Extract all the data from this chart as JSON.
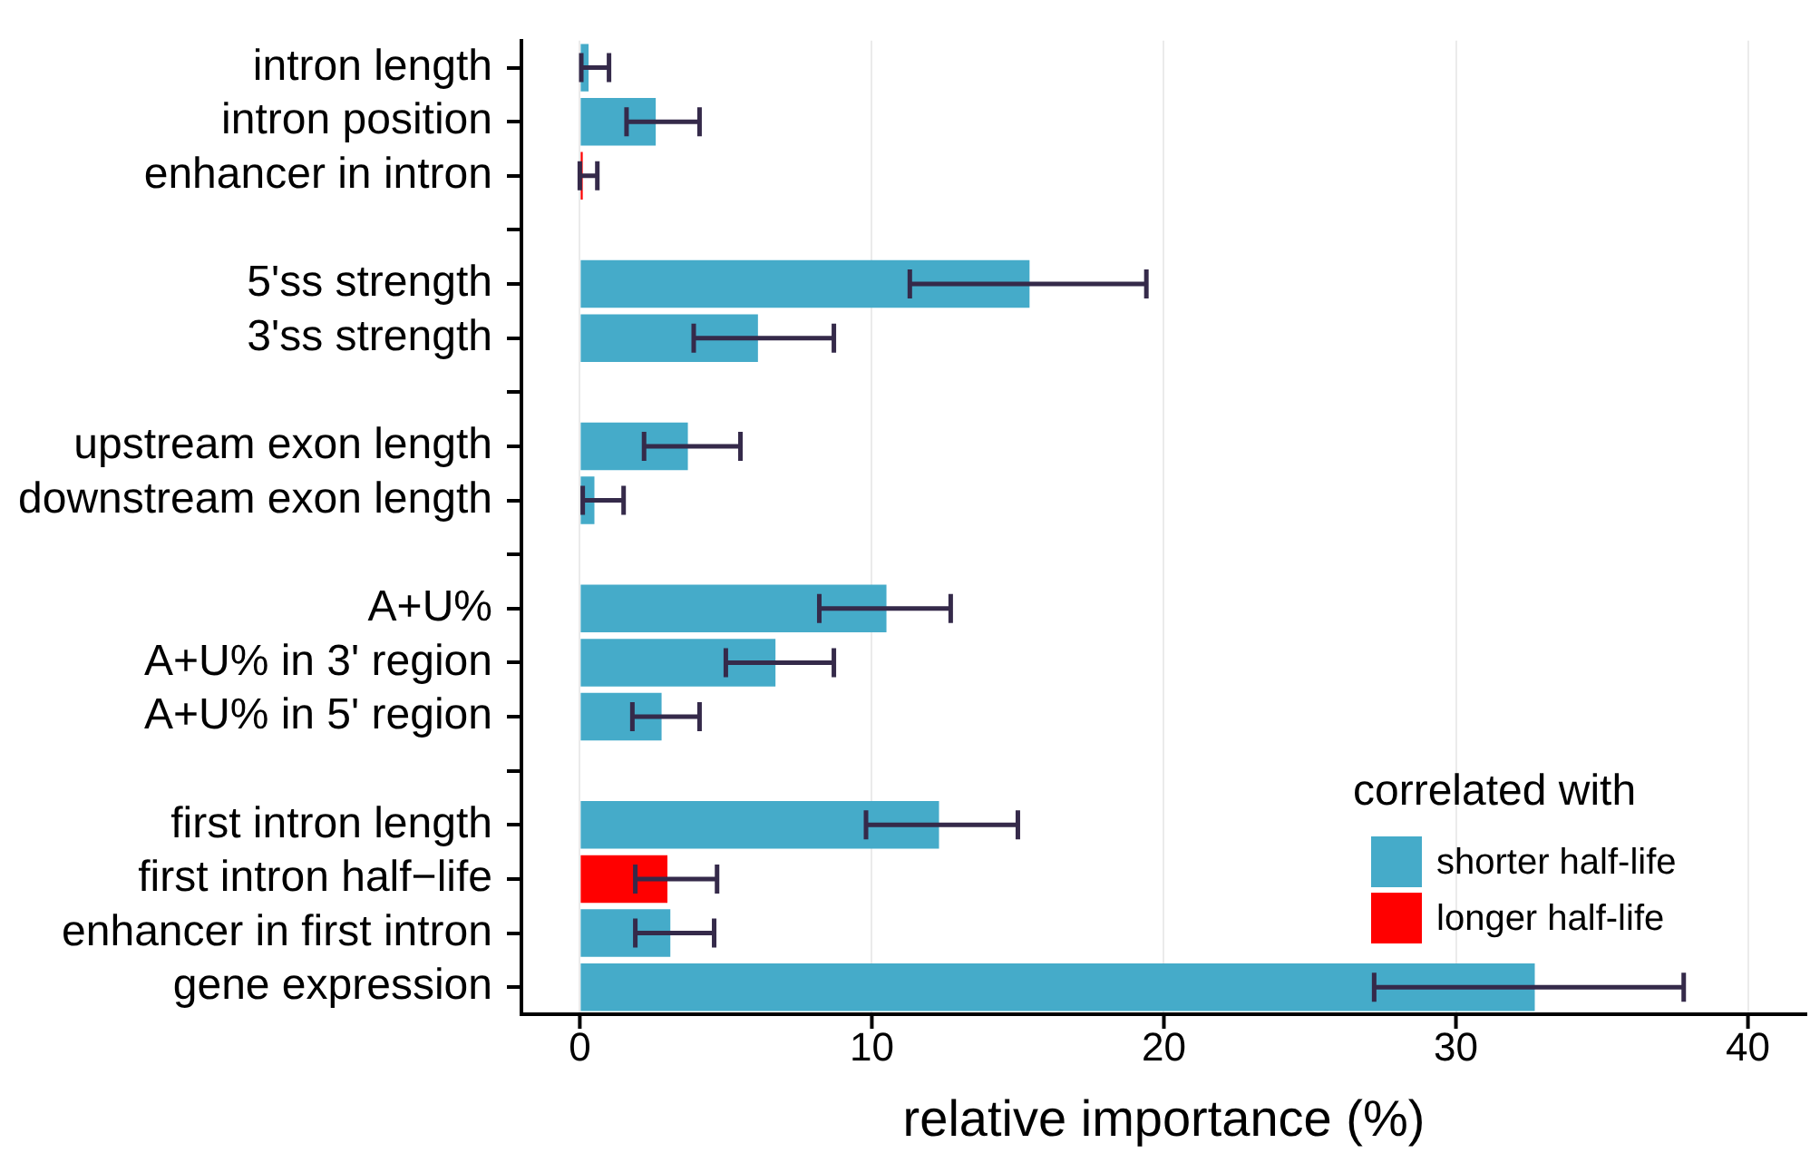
{
  "chart_data": {
    "type": "bar",
    "orientation": "horizontal",
    "xlabel": "relative importance (%)",
    "legend_title": "correlated with",
    "legend": "bottom right",
    "grid": "x",
    "categories": [
      "intron length",
      "intron position",
      "enhancer in intron",
      null,
      "5'ss strength",
      "3'ss strength",
      null,
      "upstream exon length",
      "downstream exon length",
      null,
      "A+U%",
      "A+U% in 3' region",
      "A+U% in 5' region",
      null,
      "first intron length",
      "first intron half−life",
      "enhancer in first intron",
      "gene expression"
    ],
    "xlim": [
      -2,
      42
    ],
    "xticks": [
      0,
      10,
      20,
      30,
      40
    ],
    "series": [
      {
        "name": "shorter half-life",
        "color": "#45abc9",
        "values": [
          0.3,
          2.6,
          null,
          null,
          15.4,
          6.1,
          null,
          3.7,
          0.5,
          null,
          10.5,
          6.7,
          2.8,
          null,
          12.3,
          null,
          3.1,
          32.7
        ],
        "errors": [
          [
            0.05,
            1.0
          ],
          [
            1.6,
            4.1
          ],
          null,
          null,
          [
            11.3,
            19.4
          ],
          [
            3.9,
            8.7
          ],
          null,
          [
            2.2,
            5.5
          ],
          [
            0.1,
            1.5
          ],
          null,
          [
            8.2,
            12.7
          ],
          [
            5.0,
            8.7
          ],
          [
            1.8,
            4.1
          ],
          null,
          [
            9.8,
            15.0
          ],
          null,
          [
            1.9,
            4.6
          ],
          [
            27.2,
            37.8
          ]
        ]
      },
      {
        "name": "longer half-life",
        "color": "#ff0000",
        "values": [
          null,
          null,
          0.1,
          null,
          null,
          null,
          null,
          null,
          null,
          null,
          null,
          null,
          null,
          null,
          null,
          3.0,
          null,
          null
        ],
        "errors": [
          null,
          null,
          [
            0,
            0.6
          ],
          null,
          null,
          null,
          null,
          null,
          null,
          null,
          null,
          null,
          null,
          null,
          null,
          [
            1.9,
            4.7
          ],
          null,
          null
        ]
      }
    ]
  }
}
